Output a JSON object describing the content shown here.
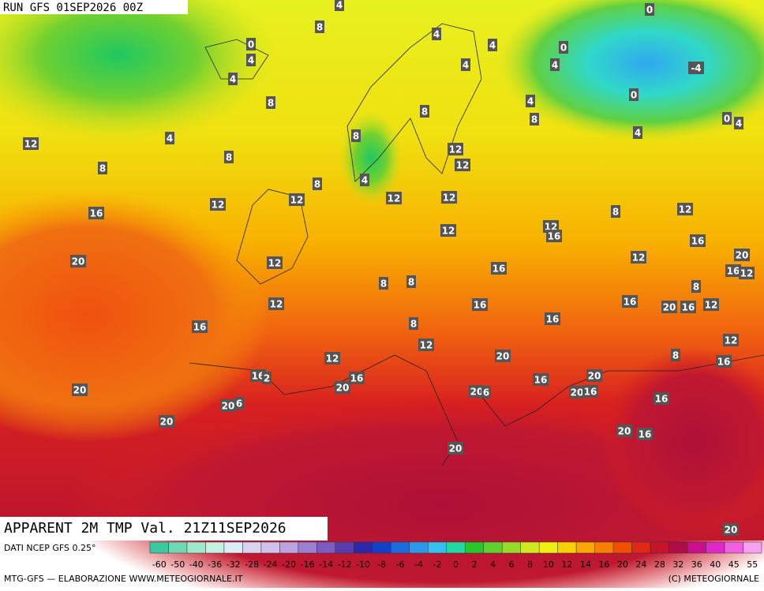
{
  "header": {
    "run": "RUN GFS 01SEP2026 00Z"
  },
  "map": {
    "title": "APPARENT 2M TMP Val. 21Z11SEP2026",
    "contour_labels": [
      "4",
      "0",
      "4",
      "4",
      "8",
      "4",
      "4",
      "0",
      "4",
      "4",
      "0",
      "-4",
      "0",
      "0",
      "4",
      "4",
      "8",
      "4",
      "8",
      "8",
      "12",
      "4",
      "8",
      "8",
      "8",
      "4",
      "8",
      "12",
      "12",
      "12",
      "12",
      "12",
      "12",
      "16",
      "12",
      "8",
      "12",
      "12",
      "16",
      "16",
      "20",
      "12",
      "20",
      "12",
      "16",
      "16",
      "12",
      "8",
      "8",
      "8",
      "12",
      "16",
      "16",
      "20",
      "16",
      "12",
      "16",
      "8",
      "16",
      "12",
      "12",
      "12",
      "20",
      "8",
      "16",
      "16",
      "2",
      "20",
      "16",
      "16",
      "20",
      "20",
      "6",
      "20",
      "16",
      "16",
      "20",
      "20",
      "6",
      "20",
      "20",
      "16",
      "20",
      "20"
    ]
  },
  "legend": {
    "source": "DATI NCEP GFS 0.25°",
    "ticks": [
      "-60",
      "-50",
      "-40",
      "-36",
      "-32",
      "-28",
      "-24",
      "-20",
      "-16",
      "-14",
      "-12",
      "-10",
      "-8",
      "-6",
      "-4",
      "-2",
      "0",
      "2",
      "4",
      "6",
      "8",
      "10",
      "12",
      "14",
      "16",
      "20",
      "24",
      "28",
      "32",
      "36",
      "40",
      "45",
      "55"
    ],
    "colors": [
      "#3cc8a0",
      "#6ed8b4",
      "#9ee8cc",
      "#c4f0e0",
      "#dcecf4",
      "#d8d4f0",
      "#d0c0ec",
      "#bca4e0",
      "#9c80d0",
      "#7c5cc0",
      "#5a3cb0",
      "#2c28a8",
      "#1440c8",
      "#1c6ce0",
      "#2c98ec",
      "#34c0f0",
      "#20d8a0",
      "#28c828",
      "#60d030",
      "#98dc28",
      "#d0e820",
      "#f0f010",
      "#f8d000",
      "#f8a800",
      "#f88000",
      "#f05000",
      "#e02818",
      "#c81428",
      "#b00c48",
      "#c8108c",
      "#e028c8",
      "#f060e0",
      "#f8a0f0"
    ]
  },
  "footer": {
    "left": "MTG-GFS — ELABORAZIONE WWW.METEOGIORNALE.IT",
    "right": "(C) METEOGIORNALE"
  }
}
